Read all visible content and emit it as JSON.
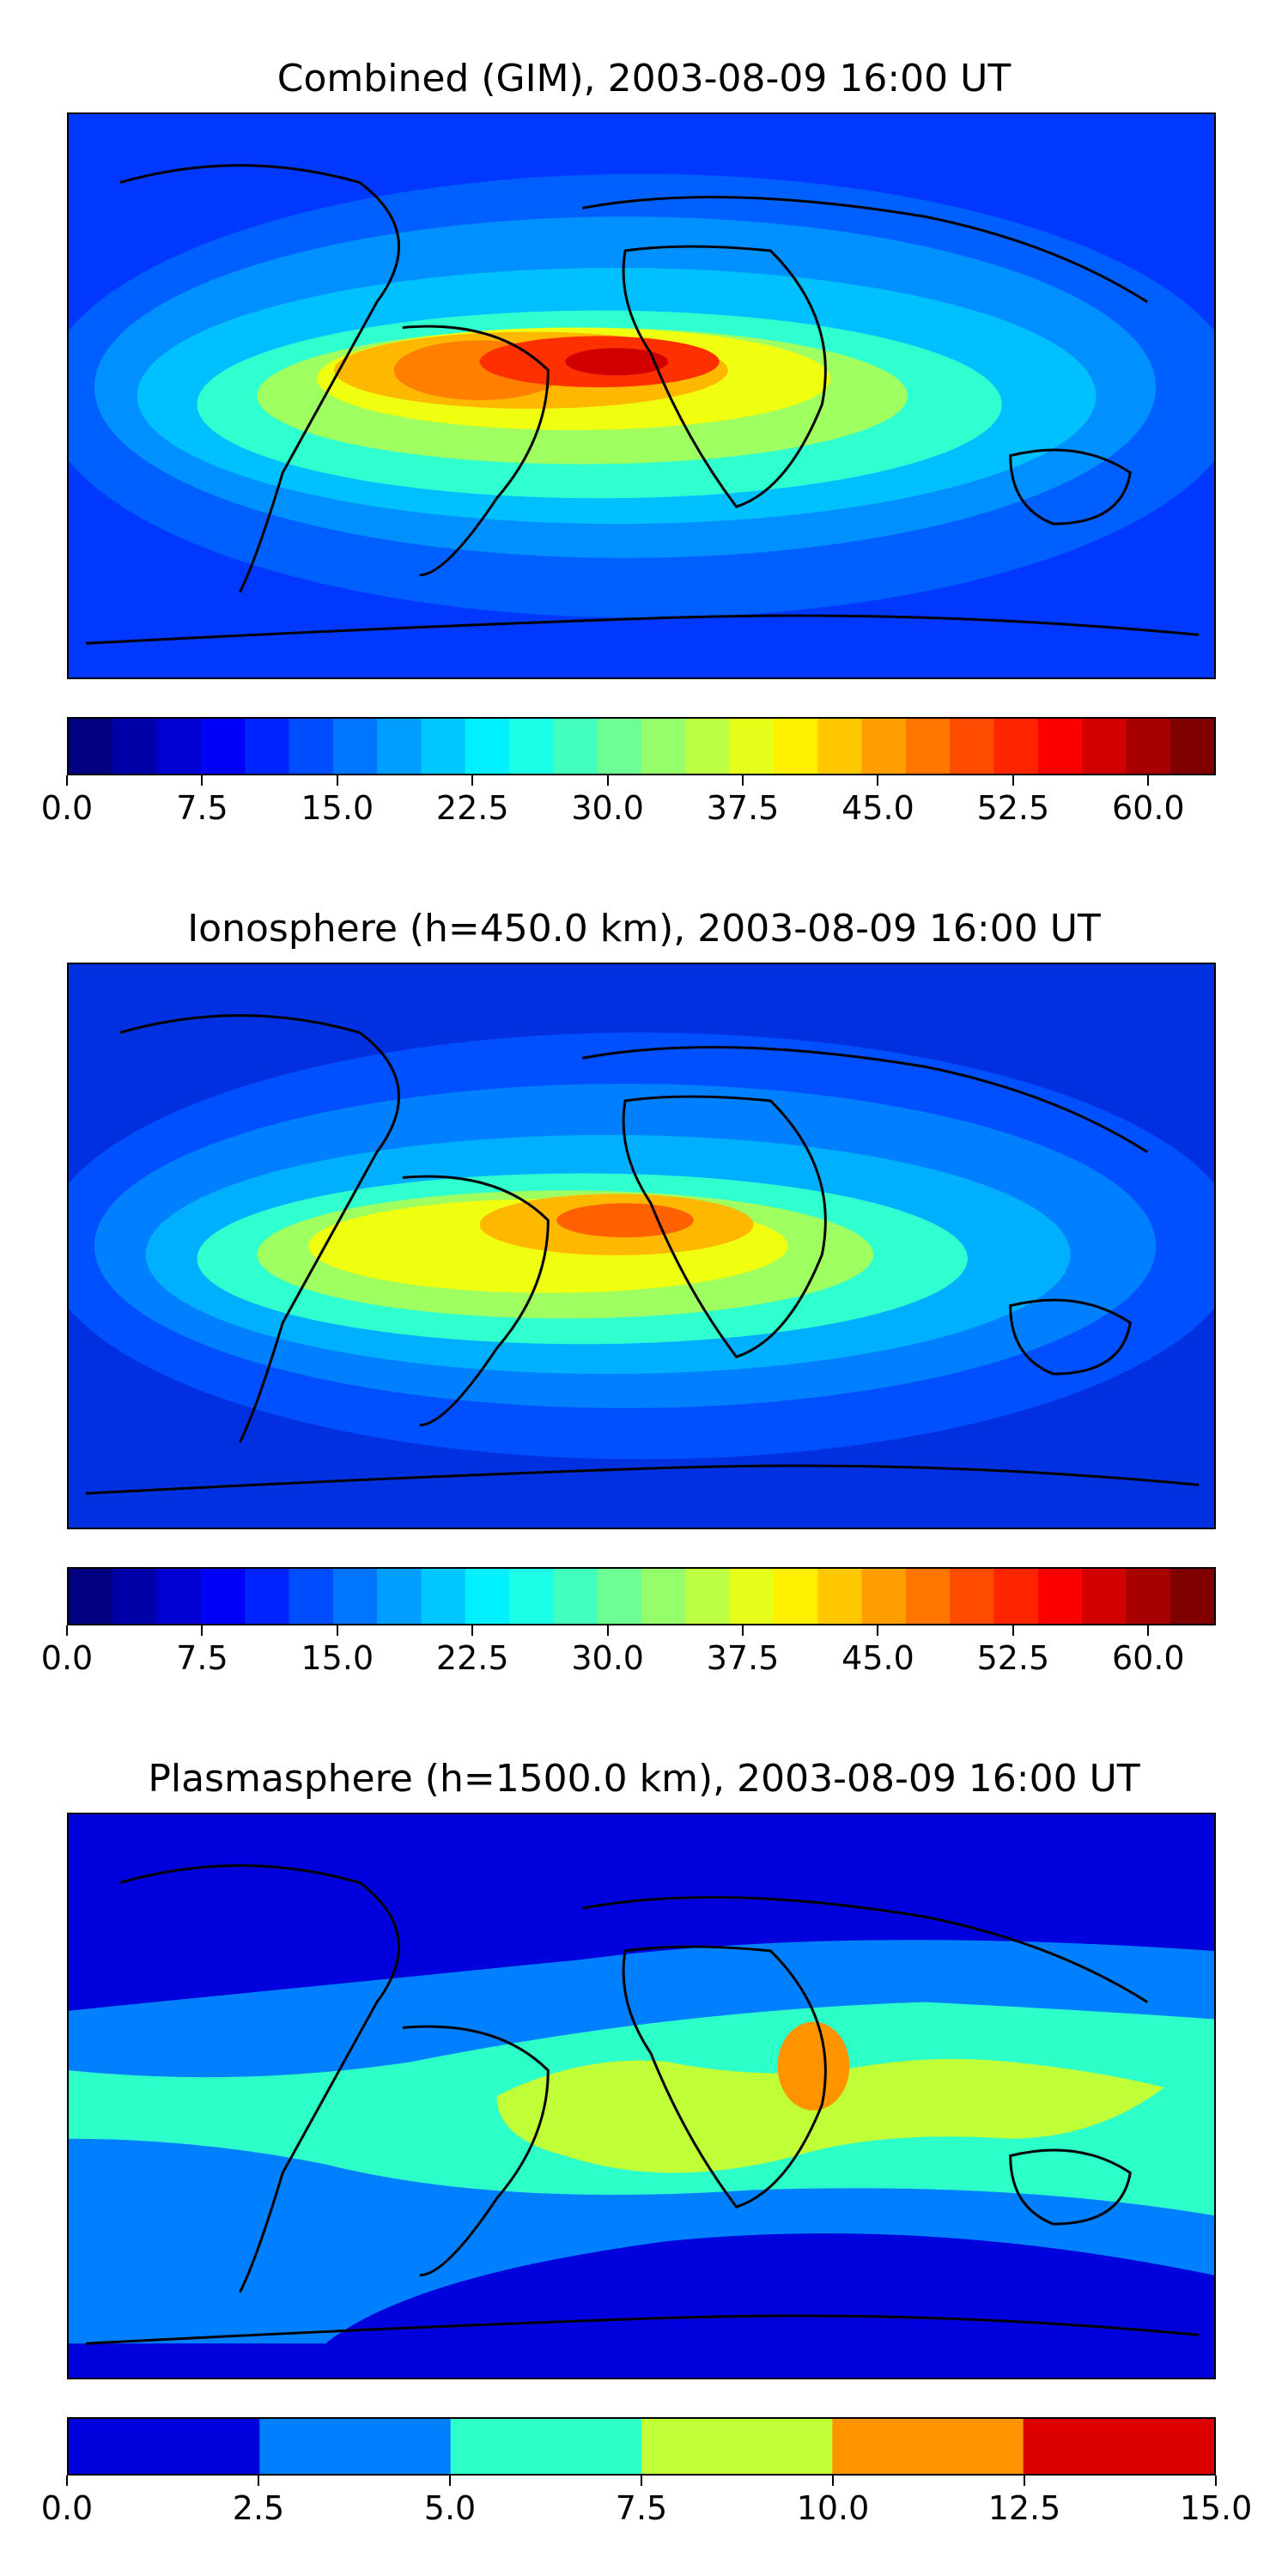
{
  "figure": {
    "panels": [
      {
        "id": "combined",
        "title": "Combined (GIM), 2003-08-09 16:00 UT",
        "colorbar_ticks": [
          "0.0",
          "7.5",
          "15.0",
          "22.5",
          "30.0",
          "37.5",
          "45.0",
          "52.5",
          "60.0"
        ],
        "colorbar_range": [
          0,
          63.75
        ],
        "colorbar_levels": 26,
        "tick_values": [
          0,
          7.5,
          15,
          22.5,
          30,
          37.5,
          45,
          52.5,
          60
        ]
      },
      {
        "id": "ionosphere",
        "title": "Ionosphere  (h=450.0 km), 2003-08-09 16:00 UT",
        "colorbar_ticks": [
          "0.0",
          "7.5",
          "15.0",
          "22.5",
          "30.0",
          "37.5",
          "45.0",
          "52.5",
          "60.0"
        ],
        "colorbar_range": [
          0,
          63.75
        ],
        "colorbar_levels": 26,
        "tick_values": [
          0,
          7.5,
          15,
          22.5,
          30,
          37.5,
          45,
          52.5,
          60
        ]
      },
      {
        "id": "plasmasphere",
        "title": "Plasmasphere (h=1500.0 km), 2003-08-09 16:00 UT",
        "colorbar_ticks": [
          "0.0",
          "2.5",
          "5.0",
          "7.5",
          "10.0",
          "12.5",
          "15.0"
        ],
        "colorbar_range": [
          0,
          15
        ],
        "colorbar_levels": 6,
        "tick_values": [
          0,
          2.5,
          5,
          7.5,
          10,
          12.5,
          15
        ]
      }
    ],
    "colormap": "jet",
    "plasma_colors": [
      "#0000dd",
      "#0080ff",
      "#2cffc8",
      "#c0ff38",
      "#ff9400",
      "#dd0000"
    ]
  }
}
